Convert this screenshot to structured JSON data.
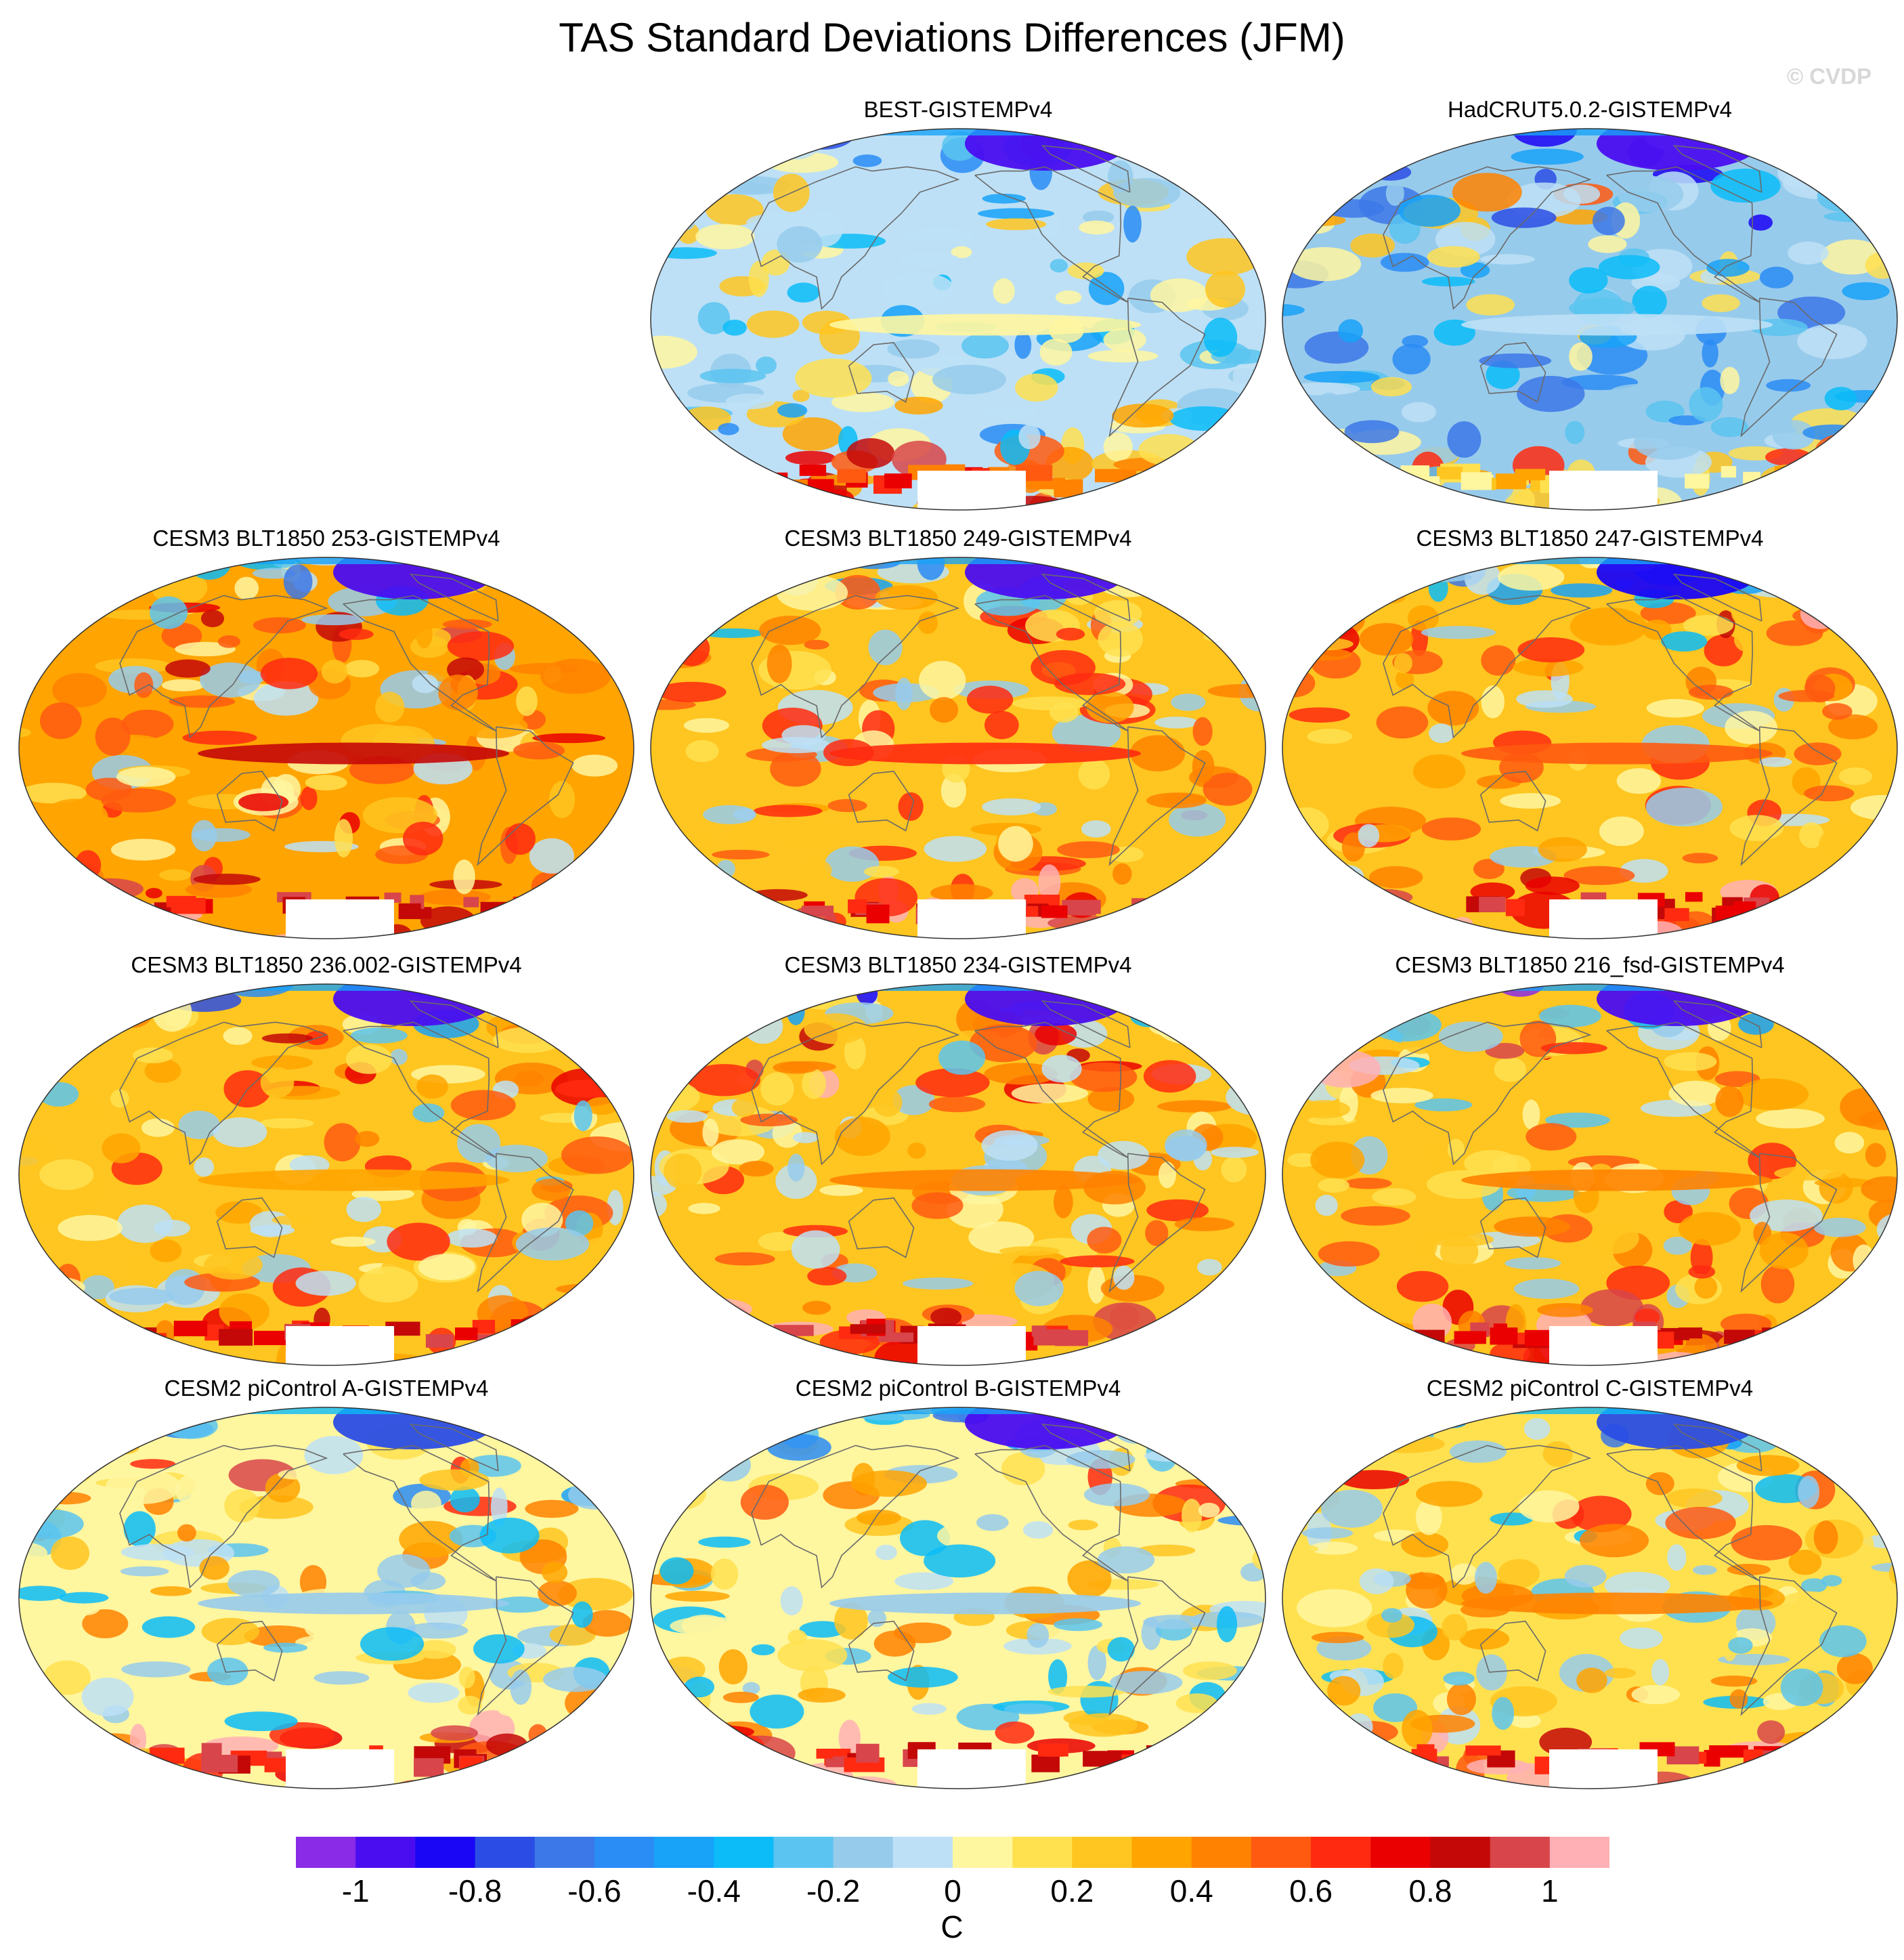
{
  "title": "TAS Standard Deviations Differences (JFM)",
  "watermark": "© CVDP",
  "panels": [
    {
      "title": "BEST-GISTEMPv4",
      "bias": -0.1,
      "arctic": -1.0,
      "tropicalBand": 0.0,
      "antarctic": 0.8
    },
    {
      "title": "HadCRUT5.0.2-GISTEMPv4",
      "bias": -0.2,
      "arctic": -1.0,
      "tropicalBand": -0.1,
      "antarctic": 0.4
    },
    {
      "title": "CESM3 BLT1850 253-GISTEMPv4",
      "bias": 0.3,
      "arctic": -1.0,
      "tropicalBand": 0.8,
      "antarctic": 1.0
    },
    {
      "title": "CESM3 BLT1850 249-GISTEMPv4",
      "bias": 0.25,
      "arctic": -1.0,
      "tropicalBand": 0.6,
      "antarctic": 1.0
    },
    {
      "title": "CESM3 BLT1850 247-GISTEMPv4",
      "bias": 0.25,
      "arctic": -0.9,
      "tropicalBand": 0.5,
      "antarctic": 1.0
    },
    {
      "title": "CESM3 BLT1850 236.002-GISTEMPv4",
      "bias": 0.2,
      "arctic": -1.0,
      "tropicalBand": 0.3,
      "antarctic": 1.0
    },
    {
      "title": "CESM3 BLT1850 234-GISTEMPv4",
      "bias": 0.25,
      "arctic": -1.0,
      "tropicalBand": 0.4,
      "antarctic": 1.0
    },
    {
      "title": "CESM3 BLT1850 216_fsd-GISTEMPv4",
      "bias": 0.2,
      "arctic": -1.0,
      "tropicalBand": 0.4,
      "antarctic": 1.0
    },
    {
      "title": "CESM2 piControl A-GISTEMPv4",
      "bias": 0.05,
      "arctic": -0.8,
      "tropicalBand": -0.2,
      "antarctic": 1.0
    },
    {
      "title": "CESM2 piControl B-GISTEMPv4",
      "bias": 0.05,
      "arctic": -1.0,
      "tropicalBand": -0.2,
      "antarctic": 1.0
    },
    {
      "title": "CESM2 piControl C-GISTEMPv4",
      "bias": 0.1,
      "arctic": -0.8,
      "tropicalBand": 0.4,
      "antarctic": 1.0
    }
  ],
  "colorbar": {
    "colors": [
      "#8a2be8",
      "#4a0df0",
      "#1a05f5",
      "#2b4de5",
      "#3c78e8",
      "#2a8cf5",
      "#18a2f8",
      "#0bbcf8",
      "#5bc4f0",
      "#97cbec",
      "#bde0f6",
      "#fff6a0",
      "#ffe150",
      "#ffc520",
      "#ffa400",
      "#ff8200",
      "#ff5a10",
      "#ff2a10",
      "#ea0000",
      "#c40808",
      "#d8454a",
      "#ffb0b5"
    ],
    "ticks": [
      "-1",
      "-0.8",
      "-0.6",
      "-0.4",
      "-0.2",
      "0",
      "0.2",
      "0.4",
      "0.6",
      "0.8",
      "1"
    ],
    "unit": "C"
  }
}
